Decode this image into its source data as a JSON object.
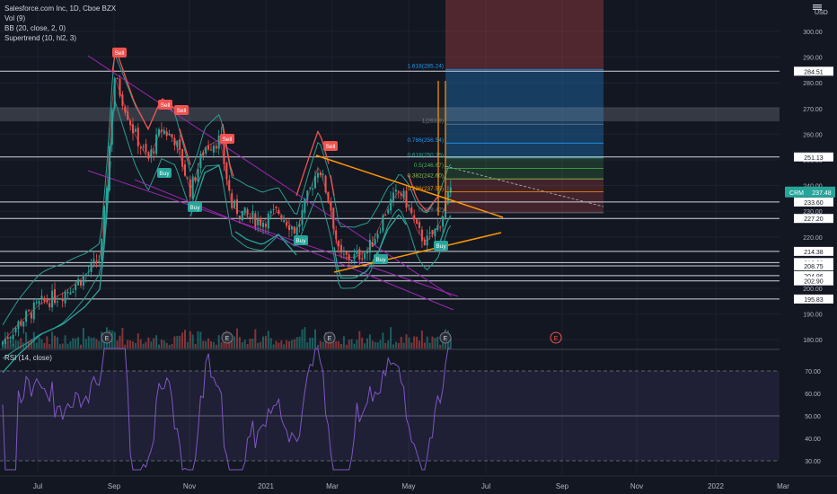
{
  "legend": {
    "symbol": "Salesforce.com Inc, 1D, Cboe BZX",
    "indicators": [
      "Vol (9)",
      "BB (20, close, 2, 0)",
      "Supertrend (10, hl2, 3)"
    ]
  },
  "rsi_legend": "RSI (14, close)",
  "currency": "USD",
  "ticker": {
    "symbol": "CRM",
    "price": "237.48"
  },
  "price_axis": [
    "300.00",
    "290.00",
    "280.00",
    "270.00",
    "260.00",
    "250.00",
    "240.00",
    "230.00",
    "220.00",
    "210.00",
    "200.00",
    "190.00",
    "180.00"
  ],
  "rsi_axis": [
    "70.00",
    "60.00",
    "50.00",
    "40.00",
    "30.00"
  ],
  "time_axis": [
    "Jul",
    "Sep",
    "Nov",
    "2021",
    "Mar",
    "May",
    "Jul",
    "Sep",
    "Nov",
    "2022",
    "Mar"
  ],
  "horizontal_levels": [
    "284.51",
    "251.13",
    "233.60",
    "227.20",
    "214.38",
    "210.03",
    "208.75",
    "204.96",
    "202.90",
    "195.83"
  ],
  "fib_labels": [
    "1.618(285.24)",
    "1(263.9)",
    "0.786(256.54)",
    "0.618(250.75)",
    "0.5(246.67)",
    "0.382(242.60)",
    "0(229.42)",
    "0.236(237.55)"
  ],
  "signals": [
    {
      "label": "Sell",
      "kind": "sell"
    },
    {
      "label": "Sell",
      "kind": "sell"
    },
    {
      "label": "Sell",
      "kind": "sell"
    },
    {
      "label": "Sell",
      "kind": "sell"
    },
    {
      "label": "Sell",
      "kind": "sell"
    },
    {
      "label": "Buy",
      "kind": "buy"
    },
    {
      "label": "Buy",
      "kind": "buy"
    },
    {
      "label": "Buy",
      "kind": "buy"
    },
    {
      "label": "Buy",
      "kind": "buy"
    },
    {
      "label": "Buy",
      "kind": "buy"
    }
  ],
  "earnings_marker": "E",
  "colors": {
    "background": "#131722",
    "grid": "#1e2230",
    "up": "#26a69a",
    "down": "#ef5350",
    "supertrend_up": "#26a69a",
    "supertrend_down": "#ef5350",
    "bollinger": "#2a9d8f",
    "channel": "#9c27b0",
    "triangle": "#ff9800",
    "rsi": "#7e57c2",
    "fib_blue": "#2196f3"
  }
}
